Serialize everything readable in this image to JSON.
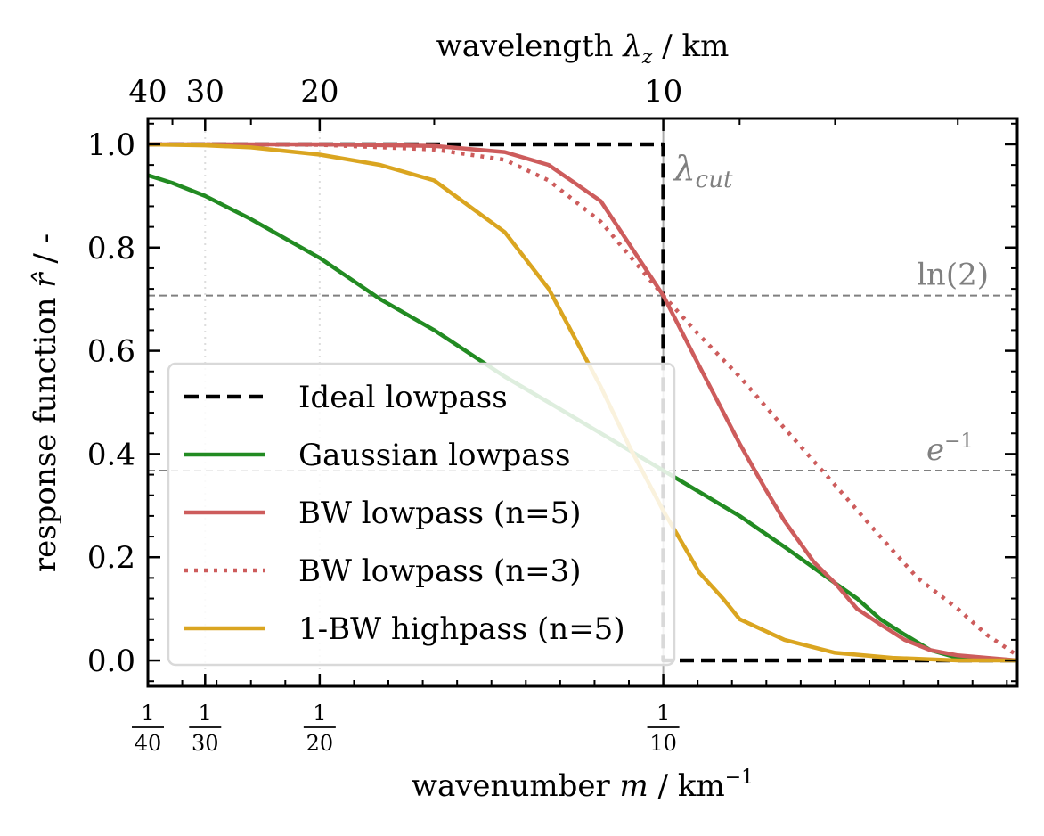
{
  "chart_data": {
    "type": "line",
    "xlabel": "wavenumber m / km⁻¹",
    "top_xlabel": "wavelength λz / km",
    "ylabel": "response function r̂ / -",
    "x_unit": "wavelength_km",
    "xlim_wavelength_km": [
      40,
      6.6
    ],
    "ylim": [
      -0.05,
      1.05
    ],
    "yticks": [
      "0.0",
      "0.2",
      "0.4",
      "0.6",
      "0.8",
      "1.0"
    ],
    "yticks_values": [
      0.0,
      0.2,
      0.4,
      0.6,
      0.8,
      1.0
    ],
    "top_ticks": [
      "40",
      "30",
      "20",
      "10"
    ],
    "top_ticks_values": [
      40,
      30,
      20,
      10
    ],
    "bottom_ticks": [
      {
        "num": "1",
        "den": "40",
        "value": 40
      },
      {
        "num": "1",
        "den": "30",
        "value": 30
      },
      {
        "num": "1",
        "den": "20",
        "value": 20
      },
      {
        "num": "1",
        "den": "10",
        "value": 10
      }
    ],
    "cutoff_wavelength_km": 10,
    "hlines": [
      {
        "label": "ln(2)",
        "y": 0.707
      },
      {
        "label": "e⁻¹",
        "y": 0.368
      }
    ],
    "cut_label": "λcut",
    "grid": "dotted at top tick positions",
    "legend_position": "lower-left",
    "series": [
      {
        "name": "Ideal lowpass",
        "style": "dashed",
        "color": "#000000",
        "x": [
          40,
          10,
          10,
          6.6
        ],
        "y": [
          1.0,
          1.0,
          0.0,
          0.0
        ]
      },
      {
        "name": "Gaussian lowpass",
        "style": "solid",
        "color": "#228b22",
        "x": [
          40,
          35,
          30,
          25,
          20,
          17,
          15,
          13,
          12,
          11,
          10,
          9,
          8.5,
          8,
          7.8,
          7.6,
          7.4,
          7.2,
          7,
          6.6
        ],
        "y": [
          0.94,
          0.925,
          0.9,
          0.855,
          0.78,
          0.7,
          0.64,
          0.55,
          0.5,
          0.44,
          0.368,
          0.28,
          0.22,
          0.15,
          0.12,
          0.08,
          0.05,
          0.02,
          0.005,
          0.0
        ]
      },
      {
        "name": "BW lowpass (n=5)",
        "style": "solid",
        "color": "#cd5c5c",
        "x": [
          40,
          30,
          20,
          15,
          13,
          12,
          11,
          10,
          9.5,
          9,
          8.7,
          8.5,
          8.2,
          8,
          7.8,
          7.6,
          7.4,
          7.2,
          7,
          6.6
        ],
        "y": [
          1.0,
          1.0,
          1.0,
          0.997,
          0.985,
          0.96,
          0.89,
          0.707,
          0.57,
          0.42,
          0.33,
          0.27,
          0.19,
          0.15,
          0.1,
          0.07,
          0.04,
          0.02,
          0.01,
          0.0
        ]
      },
      {
        "name": "BW lowpass (n=3)",
        "style": "dotted",
        "color": "#cd5c5c",
        "x": [
          40,
          30,
          20,
          15,
          13,
          12,
          11,
          10,
          9.5,
          9,
          8.5,
          8,
          7.6,
          7.3,
          7,
          6.8,
          6.6
        ],
        "y": [
          1.0,
          1.0,
          0.999,
          0.99,
          0.97,
          0.93,
          0.85,
          0.707,
          0.63,
          0.55,
          0.45,
          0.34,
          0.24,
          0.16,
          0.1,
          0.05,
          0.01
        ]
      },
      {
        "name": "1-BW highpass (n=5)",
        "style": "solid",
        "color": "#daa520",
        "x": [
          40,
          30,
          25,
          20,
          17,
          15,
          13,
          12,
          11,
          10.5,
          10,
          9.7,
          9.5,
          9.2,
          9,
          8.5,
          8,
          7.5,
          7,
          6.6
        ],
        "y": [
          1.0,
          0.998,
          0.994,
          0.98,
          0.96,
          0.93,
          0.83,
          0.72,
          0.53,
          0.41,
          0.29,
          0.22,
          0.17,
          0.12,
          0.08,
          0.04,
          0.015,
          0.005,
          0.0,
          0.0
        ]
      }
    ]
  }
}
